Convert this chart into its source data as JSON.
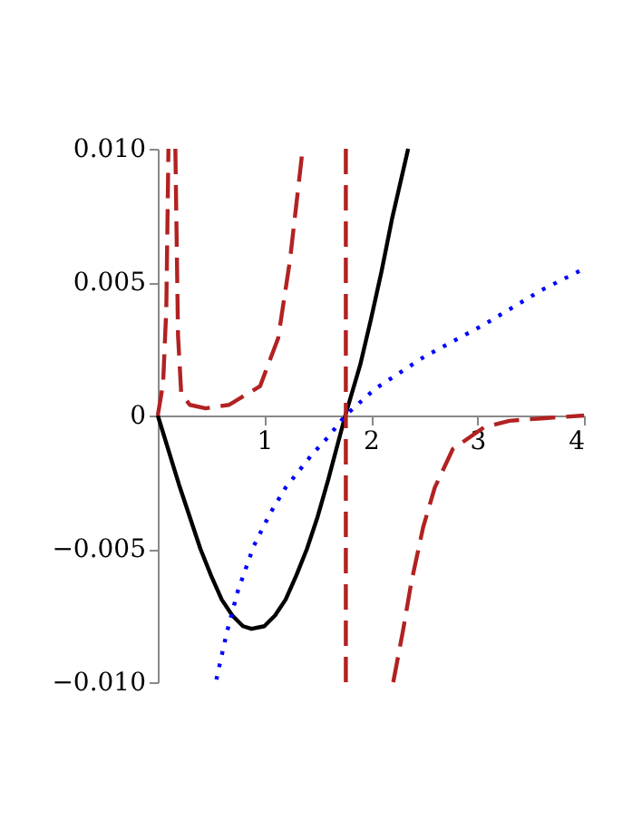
{
  "chart_data": {
    "type": "line",
    "xlim": [
      0,
      4
    ],
    "ylim": [
      -0.01,
      0.01
    ],
    "xticks": [
      1,
      2,
      3,
      4
    ],
    "yticks": [
      {
        "value": -0.01,
        "label": "−0.010"
      },
      {
        "value": -0.005,
        "label": "−0.005"
      },
      {
        "value": 0,
        "label": "0"
      },
      {
        "value": 0.005,
        "label": "0.005"
      },
      {
        "value": 0.01,
        "label": "0.010"
      }
    ],
    "grid": false,
    "legend": false,
    "marker": "none",
    "series": [
      {
        "color": "#000000",
        "line_style": "solid",
        "x": [
          0,
          0.1,
          0.2,
          0.3,
          0.4,
          0.5,
          0.6,
          0.7,
          0.8,
          0.88,
          1.0,
          1.1,
          1.2,
          1.3,
          1.4,
          1.5,
          1.6,
          1.7,
          1.76,
          1.9,
          2.0,
          2.1,
          2.2,
          2.35
        ],
        "values": [
          0,
          -0.0013,
          -0.0026,
          -0.0038,
          -0.005,
          -0.006,
          -0.0069,
          -0.0075,
          -0.0079,
          -0.008,
          -0.0079,
          -0.0075,
          -0.0069,
          -0.006,
          -0.005,
          -0.0038,
          -0.0024,
          -0.0009,
          0,
          0.0019,
          0.0036,
          0.0054,
          0.0074,
          0.01
        ]
      },
      {
        "color": "#0000ff",
        "line_style": "dotted",
        "x": [
          0.55,
          0.65,
          0.75,
          0.9,
          1.05,
          1.2,
          1.44,
          1.6,
          1.76,
          2.04,
          2.5,
          3.06,
          3.6,
          4.0
        ],
        "values": [
          -0.0099,
          -0.0081,
          -0.0066,
          -0.0049,
          -0.0037,
          -0.0027,
          -0.0015,
          -0.0008,
          0,
          0.001,
          0.0022,
          0.0034,
          0.0047,
          0.0055
        ]
      },
      {
        "color": "#b22222",
        "line_style": "dashed",
        "x": [
          0,
          0.05,
          0.08,
          0.1,
          0.13,
          0.165,
          0.19,
          0.22,
          0.3,
          0.45,
          0.67,
          0.96,
          1.13,
          1.24,
          1.36,
          1.5,
          1.765,
          1.765,
          2.0,
          2.21,
          2.3,
          2.38,
          2.49,
          2.6,
          2.77,
          3.06,
          3.3,
          3.63,
          4.0
        ],
        "values": [
          0,
          0.0012,
          0.004,
          0.01,
          null,
          0.01,
          0.003,
          0.00084,
          0.0004,
          0.00027,
          0.0004,
          0.0011,
          0.0029,
          0.0058,
          0.01,
          null,
          0.01,
          -0.01,
          null,
          -0.01,
          -0.0081,
          -0.00625,
          -0.0042,
          -0.0027,
          -0.00125,
          -0.00045,
          -0.0002,
          -0.0001,
          0
        ]
      }
    ]
  }
}
